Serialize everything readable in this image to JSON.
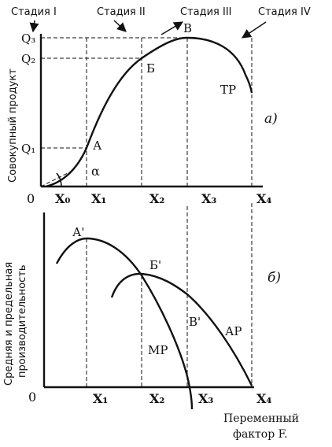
{
  "stages": [
    "Стадия I",
    "Стадия II",
    "Стадия III",
    "Стадия IV"
  ],
  "top_panel": {
    "ylabel": "Совокупный продукт",
    "y_ticks": [
      "Q₃",
      "Q₂",
      "Q₁"
    ],
    "origin": "0",
    "x_ticks": [
      "X₀",
      "X₁",
      "X₂",
      "X₃",
      "X₄"
    ],
    "points": [
      "А",
      "Б",
      "В"
    ],
    "curve_label": "ТР",
    "angle": "α",
    "panel": "а)"
  },
  "bottom_panel": {
    "ylabel_line1": "Средняя и предельная",
    "ylabel_line2": "производительность",
    "origin": "0",
    "x_ticks": [
      "X₁",
      "X₂",
      "X₃",
      "X₄"
    ],
    "points": [
      "А'",
      "Б'",
      "В'"
    ],
    "curve_labels": [
      "МР",
      "АР"
    ],
    "panel": "б)",
    "xlabel_line1": "Переменный",
    "xlabel_line2": "фактор F."
  }
}
